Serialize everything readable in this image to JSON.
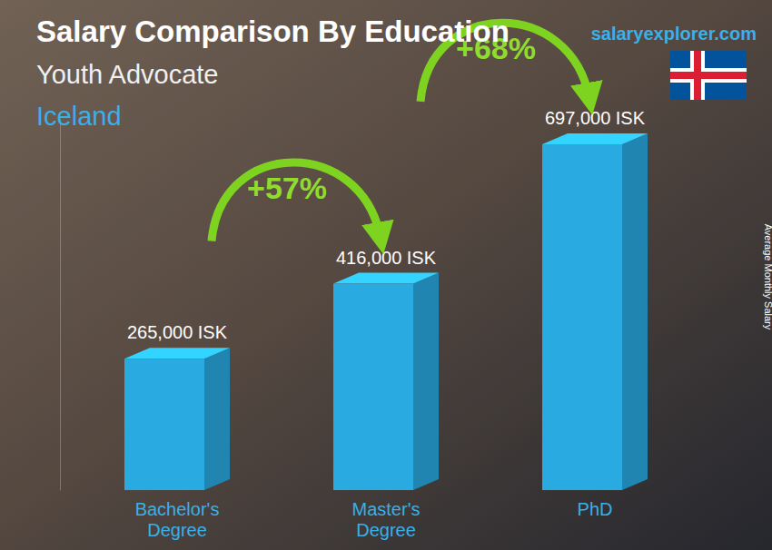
{
  "chart_data": {
    "type": "bar",
    "title": "Salary Comparison By Education",
    "subtitles": [
      "Youth Advocate",
      "Iceland"
    ],
    "source": "salaryexplorer.com",
    "y_label": "Average Monthly Salary",
    "categories": [
      "Bachelor's Degree",
      "Master's Degree",
      "PhD"
    ],
    "values": [
      265000,
      416000,
      697000
    ],
    "value_labels": [
      "265,000 ISK",
      "416,000 ISK",
      "697,000 ISK"
    ],
    "data_labels": true,
    "annotations": [
      "+57%",
      "+68%"
    ],
    "color": "#29abe2",
    "ylim": [
      0,
      750000
    ],
    "yticks": [],
    "tick_labels": "x",
    "grid": false
  }
}
